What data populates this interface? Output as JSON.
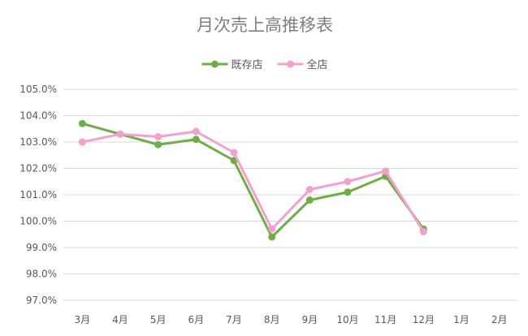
{
  "chart_data": {
    "type": "line",
    "title": "月次売上高推移表",
    "categories": [
      "3月",
      "4月",
      "5月",
      "6月",
      "7月",
      "8月",
      "9月",
      "10月",
      "11月",
      "12月",
      "1月",
      "2月"
    ],
    "series": [
      {
        "name": "既存店",
        "color": "#70ad47",
        "values": [
          103.7,
          103.3,
          102.9,
          103.1,
          102.3,
          99.4,
          100.8,
          101.1,
          101.7,
          99.7,
          null,
          null
        ]
      },
      {
        "name": "全店",
        "color": "#f4a0cf",
        "values": [
          103.0,
          103.3,
          103.2,
          103.4,
          102.6,
          99.7,
          101.2,
          101.5,
          101.9,
          99.6,
          null,
          null
        ]
      }
    ],
    "yticks": [
      "105.0%",
      "104.0%",
      "103.0%",
      "102.0%",
      "101.0%",
      "100.0%",
      "99.0%",
      "98.0%",
      "97.0%"
    ],
    "ylim": [
      97.0,
      105.0
    ],
    "grid": true,
    "legend": "top"
  }
}
